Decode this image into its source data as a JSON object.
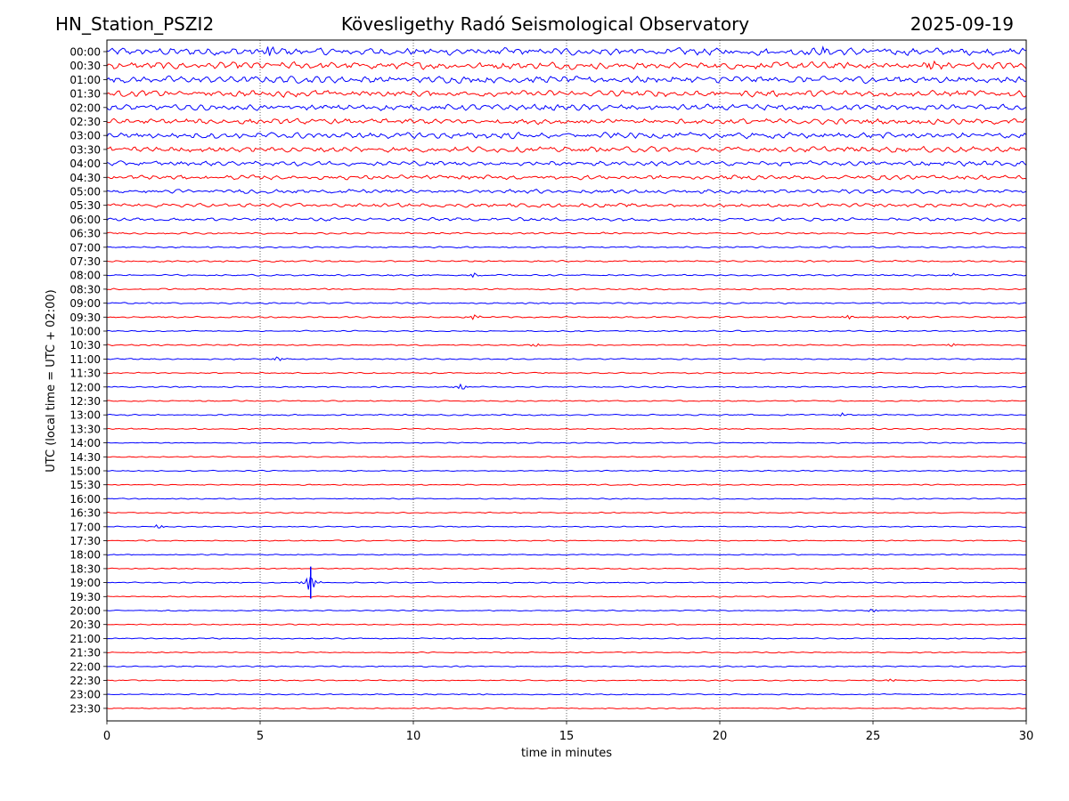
{
  "header": {
    "station": "HN_Station_PSZI2",
    "observatory": "Kövesligethy Radó Seismological Observatory",
    "date": "2025-09-19"
  },
  "chart_data": {
    "type": "line",
    "title": "Kövesligethy Radó Seismological Observatory",
    "xlabel": "time in minutes",
    "ylabel": "UTC (local time = UTC + 02:00)",
    "xlim": [
      0,
      30
    ],
    "xticks": [
      0,
      5,
      10,
      15,
      20,
      25,
      30
    ],
    "grid": "vertical dotted lines at x = 5, 10, 15, 20, 25",
    "row_labels": [
      "00:00",
      "00:30",
      "01:00",
      "01:30",
      "02:00",
      "02:30",
      "03:00",
      "03:30",
      "04:00",
      "04:30",
      "05:00",
      "05:30",
      "06:00",
      "06:30",
      "07:00",
      "07:30",
      "08:00",
      "08:30",
      "09:00",
      "09:30",
      "10:00",
      "10:30",
      "11:00",
      "11:30",
      "12:00",
      "12:30",
      "13:00",
      "13:30",
      "14:00",
      "14:30",
      "15:00",
      "15:30",
      "16:00",
      "16:30",
      "17:00",
      "17:30",
      "18:00",
      "18:30",
      "19:00",
      "19:30",
      "20:00",
      "20:30",
      "21:00",
      "21:30",
      "22:00",
      "22:30",
      "23:00",
      "23:30"
    ],
    "trace_colors": [
      "#0000ff",
      "#ff0000"
    ],
    "noise_level": [
      4.0,
      3.8,
      3.6,
      3.4,
      3.2,
      3.0,
      3.2,
      3.0,
      2.6,
      2.4,
      2.2,
      2.0,
      1.8,
      1.0,
      0.9,
      0.9,
      0.8,
      0.8,
      0.8,
      0.8,
      0.7,
      0.7,
      0.7,
      0.7,
      0.7,
      0.7,
      0.7,
      0.7,
      0.6,
      0.6,
      0.6,
      0.6,
      0.6,
      0.6,
      0.6,
      0.6,
      0.6,
      0.6,
      0.6,
      0.6,
      0.6,
      0.6,
      0.6,
      0.6,
      0.6,
      0.6,
      0.6,
      0.6
    ],
    "events": [
      {
        "row": 0,
        "minute": 5.3,
        "amp": 8
      },
      {
        "row": 0,
        "minute": 23.4,
        "amp": 6
      },
      {
        "row": 1,
        "minute": 26.9,
        "amp": 8
      },
      {
        "row": 16,
        "minute": 12.0,
        "amp": 4
      },
      {
        "row": 16,
        "minute": 27.6,
        "amp": 3
      },
      {
        "row": 19,
        "minute": 12.0,
        "amp": 5
      },
      {
        "row": 19,
        "minute": 24.2,
        "amp": 4
      },
      {
        "row": 19,
        "minute": 26.1,
        "amp": 4
      },
      {
        "row": 21,
        "minute": 14.0,
        "amp": 3
      },
      {
        "row": 21,
        "minute": 27.6,
        "amp": 3
      },
      {
        "row": 22,
        "minute": 5.6,
        "amp": 5
      },
      {
        "row": 24,
        "minute": 11.6,
        "amp": 6
      },
      {
        "row": 26,
        "minute": 24.0,
        "amp": 3
      },
      {
        "row": 34,
        "minute": 1.7,
        "amp": 4
      },
      {
        "row": 38,
        "minute": 6.65,
        "amp": 18
      },
      {
        "row": 40,
        "minute": 25.0,
        "amp": 3
      },
      {
        "row": 45,
        "minute": 25.6,
        "amp": 3
      }
    ]
  }
}
